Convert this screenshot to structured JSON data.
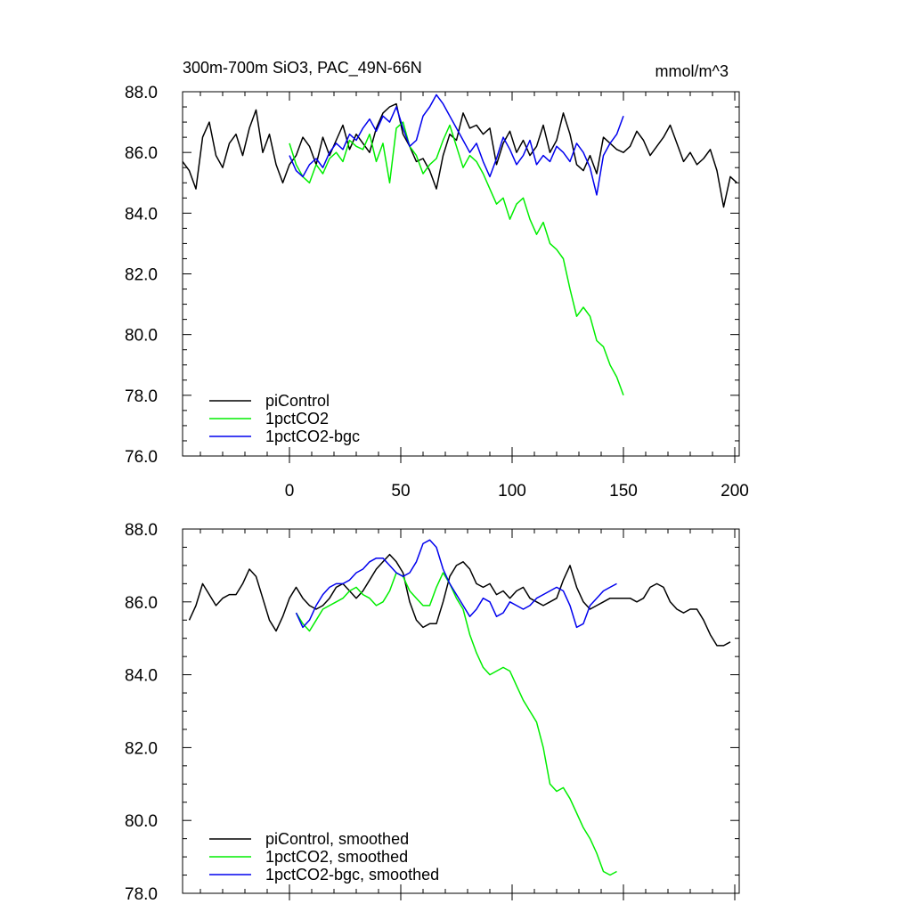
{
  "chart_data": [
    {
      "type": "line",
      "title": "300m-700m SiO3, PAC_49N-66N",
      "units": "mmol/m^3",
      "xlim": [
        -48,
        202
      ],
      "ylim": [
        76,
        88
      ],
      "xticks": [
        0,
        50,
        100,
        150,
        200
      ],
      "xtick_labels": [
        "0",
        "50",
        "100",
        "150",
        "200"
      ],
      "yticks": [
        76,
        78,
        80,
        82,
        84,
        86,
        88
      ],
      "ytick_labels": [
        "76.0",
        "78.0",
        "80.0",
        "82.0",
        "84.0",
        "86.0",
        "88.0"
      ],
      "legend": [
        "piControl",
        "1pctCO2",
        "1pctCO2-bgc"
      ],
      "legend_position": "bottom-left",
      "series": [
        {
          "name": "piControl",
          "color": "#000000",
          "x": [
            -48,
            -45,
            -42,
            -39,
            -36,
            -33,
            -30,
            -27,
            -24,
            -21,
            -18,
            -15,
            -12,
            -9,
            -6,
            -3,
            0,
            3,
            6,
            9,
            12,
            15,
            18,
            21,
            24,
            27,
            30,
            33,
            36,
            39,
            42,
            45,
            48,
            51,
            54,
            57,
            60,
            63,
            66,
            69,
            72,
            75,
            78,
            81,
            84,
            87,
            90,
            93,
            96,
            99,
            102,
            105,
            108,
            111,
            114,
            117,
            120,
            123,
            126,
            129,
            132,
            135,
            138,
            141,
            144,
            147,
            150,
            153,
            156,
            159,
            162,
            165,
            168,
            171,
            174,
            177,
            180,
            183,
            186,
            189,
            192,
            195,
            198,
            201
          ],
          "values": [
            85.7,
            85.4,
            84.8,
            86.5,
            87.0,
            85.9,
            85.5,
            86.3,
            86.6,
            85.9,
            86.8,
            87.4,
            86.0,
            86.6,
            85.6,
            85.0,
            85.6,
            85.9,
            86.5,
            86.2,
            85.6,
            86.5,
            85.9,
            86.4,
            86.9,
            86.1,
            86.6,
            86.3,
            86.0,
            86.8,
            87.3,
            87.5,
            87.6,
            86.6,
            86.2,
            85.7,
            85.8,
            85.4,
            84.8,
            85.9,
            86.6,
            86.4,
            87.3,
            86.8,
            86.9,
            86.6,
            86.8,
            85.6,
            86.3,
            86.7,
            86.0,
            86.4,
            85.9,
            86.2,
            86.9,
            86.0,
            86.4,
            87.3,
            86.6,
            85.6,
            85.4,
            85.9,
            85.3,
            86.5,
            86.3,
            86.1,
            86.0,
            86.2,
            86.7,
            86.4,
            85.9,
            86.2,
            86.5,
            86.9,
            86.3,
            85.7,
            86.0,
            85.6,
            85.8,
            86.1,
            85.4,
            84.2,
            85.2,
            85.0
          ]
        },
        {
          "name": "1pctCO2",
          "color": "#00ee00",
          "x": [
            0,
            3,
            6,
            9,
            12,
            15,
            18,
            21,
            24,
            27,
            30,
            33,
            36,
            39,
            42,
            45,
            48,
            51,
            54,
            57,
            60,
            63,
            66,
            69,
            72,
            75,
            78,
            81,
            84,
            87,
            90,
            93,
            96,
            99,
            102,
            105,
            108,
            111,
            114,
            117,
            120,
            123,
            126,
            129,
            132,
            135,
            138,
            141,
            144,
            147,
            150
          ],
          "values": [
            86.3,
            85.6,
            85.2,
            85.0,
            85.6,
            85.3,
            85.8,
            86.0,
            85.7,
            86.4,
            86.2,
            86.1,
            86.6,
            85.7,
            86.3,
            85.0,
            86.8,
            87.0,
            86.2,
            85.9,
            85.3,
            85.6,
            85.8,
            86.4,
            86.9,
            86.2,
            85.5,
            85.9,
            85.7,
            85.3,
            84.8,
            84.3,
            84.5,
            83.8,
            84.3,
            84.5,
            83.8,
            83.3,
            83.7,
            83.0,
            82.8,
            82.5,
            81.5,
            80.6,
            80.9,
            80.6,
            79.8,
            79.6,
            79.0,
            78.6,
            78.0
          ]
        },
        {
          "name": "1pctCO2-bgc",
          "color": "#0000ee",
          "x": [
            0,
            3,
            6,
            9,
            12,
            15,
            18,
            21,
            24,
            27,
            30,
            33,
            36,
            39,
            42,
            45,
            48,
            51,
            54,
            57,
            60,
            63,
            66,
            69,
            72,
            75,
            78,
            81,
            84,
            87,
            90,
            93,
            96,
            99,
            102,
            105,
            108,
            111,
            114,
            117,
            120,
            123,
            126,
            129,
            132,
            135,
            138,
            141,
            144,
            147,
            150
          ],
          "values": [
            85.9,
            85.4,
            85.2,
            85.6,
            85.8,
            85.5,
            86.0,
            86.3,
            86.1,
            86.6,
            86.4,
            86.8,
            87.1,
            86.7,
            87.2,
            87.0,
            87.5,
            86.8,
            86.2,
            86.4,
            87.2,
            87.5,
            87.9,
            87.6,
            87.2,
            86.8,
            86.4,
            86.0,
            86.3,
            85.7,
            85.2,
            85.8,
            86.5,
            86.1,
            85.6,
            85.9,
            86.4,
            85.6,
            85.9,
            85.7,
            86.2,
            86.0,
            85.7,
            86.3,
            86.0,
            85.5,
            84.6,
            85.9,
            86.3,
            86.6,
            87.2
          ]
        }
      ]
    },
    {
      "type": "line",
      "title": "",
      "xlim": [
        -48,
        202
      ],
      "ylim": [
        78,
        88
      ],
      "xticks": [
        0,
        50,
        100,
        150,
        200
      ],
      "yticks": [
        78,
        80,
        82,
        84,
        86,
        88
      ],
      "ytick_labels": [
        "78.0",
        "80.0",
        "82.0",
        "84.0",
        "86.0",
        "88.0"
      ],
      "legend": [
        "piControl, smoothed",
        "1pctCO2, smoothed",
        "1pctCO2-bgc, smoothed"
      ],
      "legend_position": "bottom-left",
      "series": [
        {
          "name": "piControl, smoothed",
          "color": "#000000",
          "x": [
            -45,
            -42,
            -39,
            -36,
            -33,
            -30,
            -27,
            -24,
            -21,
            -18,
            -15,
            -12,
            -9,
            -6,
            -3,
            0,
            3,
            6,
            9,
            12,
            15,
            18,
            21,
            24,
            27,
            30,
            33,
            36,
            39,
            42,
            45,
            48,
            51,
            54,
            57,
            60,
            63,
            66,
            69,
            72,
            75,
            78,
            81,
            84,
            87,
            90,
            93,
            96,
            99,
            102,
            105,
            108,
            111,
            114,
            117,
            120,
            123,
            126,
            129,
            132,
            135,
            138,
            141,
            144,
            147,
            150,
            153,
            156,
            159,
            162,
            165,
            168,
            171,
            174,
            177,
            180,
            183,
            186,
            189,
            192,
            195,
            198
          ],
          "values": [
            85.5,
            85.9,
            86.5,
            86.2,
            85.9,
            86.1,
            86.2,
            86.2,
            86.5,
            86.9,
            86.7,
            86.1,
            85.5,
            85.2,
            85.6,
            86.1,
            86.4,
            86.1,
            85.9,
            85.8,
            85.9,
            86.1,
            86.4,
            86.5,
            86.3,
            86.1,
            86.3,
            86.6,
            86.9,
            87.1,
            87.3,
            87.1,
            86.8,
            86.0,
            85.5,
            85.3,
            85.4,
            85.4,
            86.0,
            86.7,
            87.0,
            87.1,
            86.9,
            86.5,
            86.4,
            86.5,
            86.2,
            86.3,
            86.1,
            86.3,
            86.4,
            86.1,
            86.0,
            85.9,
            86.0,
            86.1,
            86.6,
            87.0,
            86.4,
            86.0,
            85.8,
            85.9,
            86.0,
            86.1,
            86.1,
            86.1,
            86.1,
            86.0,
            86.1,
            86.4,
            86.5,
            86.4,
            86.0,
            85.8,
            85.7,
            85.8,
            85.8,
            85.5,
            85.1,
            84.8,
            84.8,
            84.9
          ]
        },
        {
          "name": "1pctCO2, smoothed",
          "color": "#00ee00",
          "x": [
            3,
            6,
            9,
            12,
            15,
            18,
            21,
            24,
            27,
            30,
            33,
            36,
            39,
            42,
            45,
            48,
            51,
            54,
            57,
            60,
            63,
            66,
            69,
            72,
            75,
            78,
            81,
            84,
            87,
            90,
            93,
            96,
            99,
            102,
            105,
            108,
            111,
            114,
            117,
            120,
            123,
            126,
            129,
            132,
            135,
            138,
            141,
            144,
            147
          ],
          "values": [
            85.7,
            85.4,
            85.2,
            85.5,
            85.8,
            85.9,
            86.0,
            86.1,
            86.3,
            86.4,
            86.2,
            86.1,
            85.9,
            86.0,
            86.3,
            86.8,
            86.7,
            86.3,
            86.1,
            85.9,
            85.9,
            86.4,
            86.8,
            86.5,
            86.1,
            85.8,
            85.1,
            84.6,
            84.2,
            84.0,
            84.1,
            84.2,
            84.1,
            83.7,
            83.3,
            83.0,
            82.7,
            82.0,
            81.0,
            80.8,
            80.9,
            80.6,
            80.2,
            79.8,
            79.5,
            79.1,
            78.6,
            78.5,
            78.6
          ]
        },
        {
          "name": "1pctCO2-bgc, smoothed",
          "color": "#0000ee",
          "x": [
            3,
            6,
            9,
            12,
            15,
            18,
            21,
            24,
            27,
            30,
            33,
            36,
            39,
            42,
            45,
            48,
            51,
            54,
            57,
            60,
            63,
            66,
            69,
            72,
            75,
            78,
            81,
            84,
            87,
            90,
            93,
            96,
            99,
            102,
            105,
            108,
            111,
            114,
            117,
            120,
            123,
            126,
            129,
            132,
            135,
            138,
            141,
            144,
            147
          ],
          "values": [
            85.7,
            85.3,
            85.5,
            85.9,
            86.2,
            86.4,
            86.5,
            86.5,
            86.6,
            86.8,
            86.9,
            87.1,
            87.2,
            87.2,
            87.0,
            86.8,
            86.7,
            86.8,
            87.1,
            87.6,
            87.7,
            87.5,
            86.9,
            86.5,
            86.2,
            85.9,
            85.6,
            85.8,
            86.1,
            86.0,
            85.6,
            85.7,
            86.0,
            85.9,
            85.8,
            85.9,
            86.1,
            86.2,
            86.3,
            86.4,
            86.3,
            85.9,
            85.3,
            85.4,
            85.9,
            86.1,
            86.3,
            86.4,
            86.5
          ]
        }
      ]
    }
  ]
}
